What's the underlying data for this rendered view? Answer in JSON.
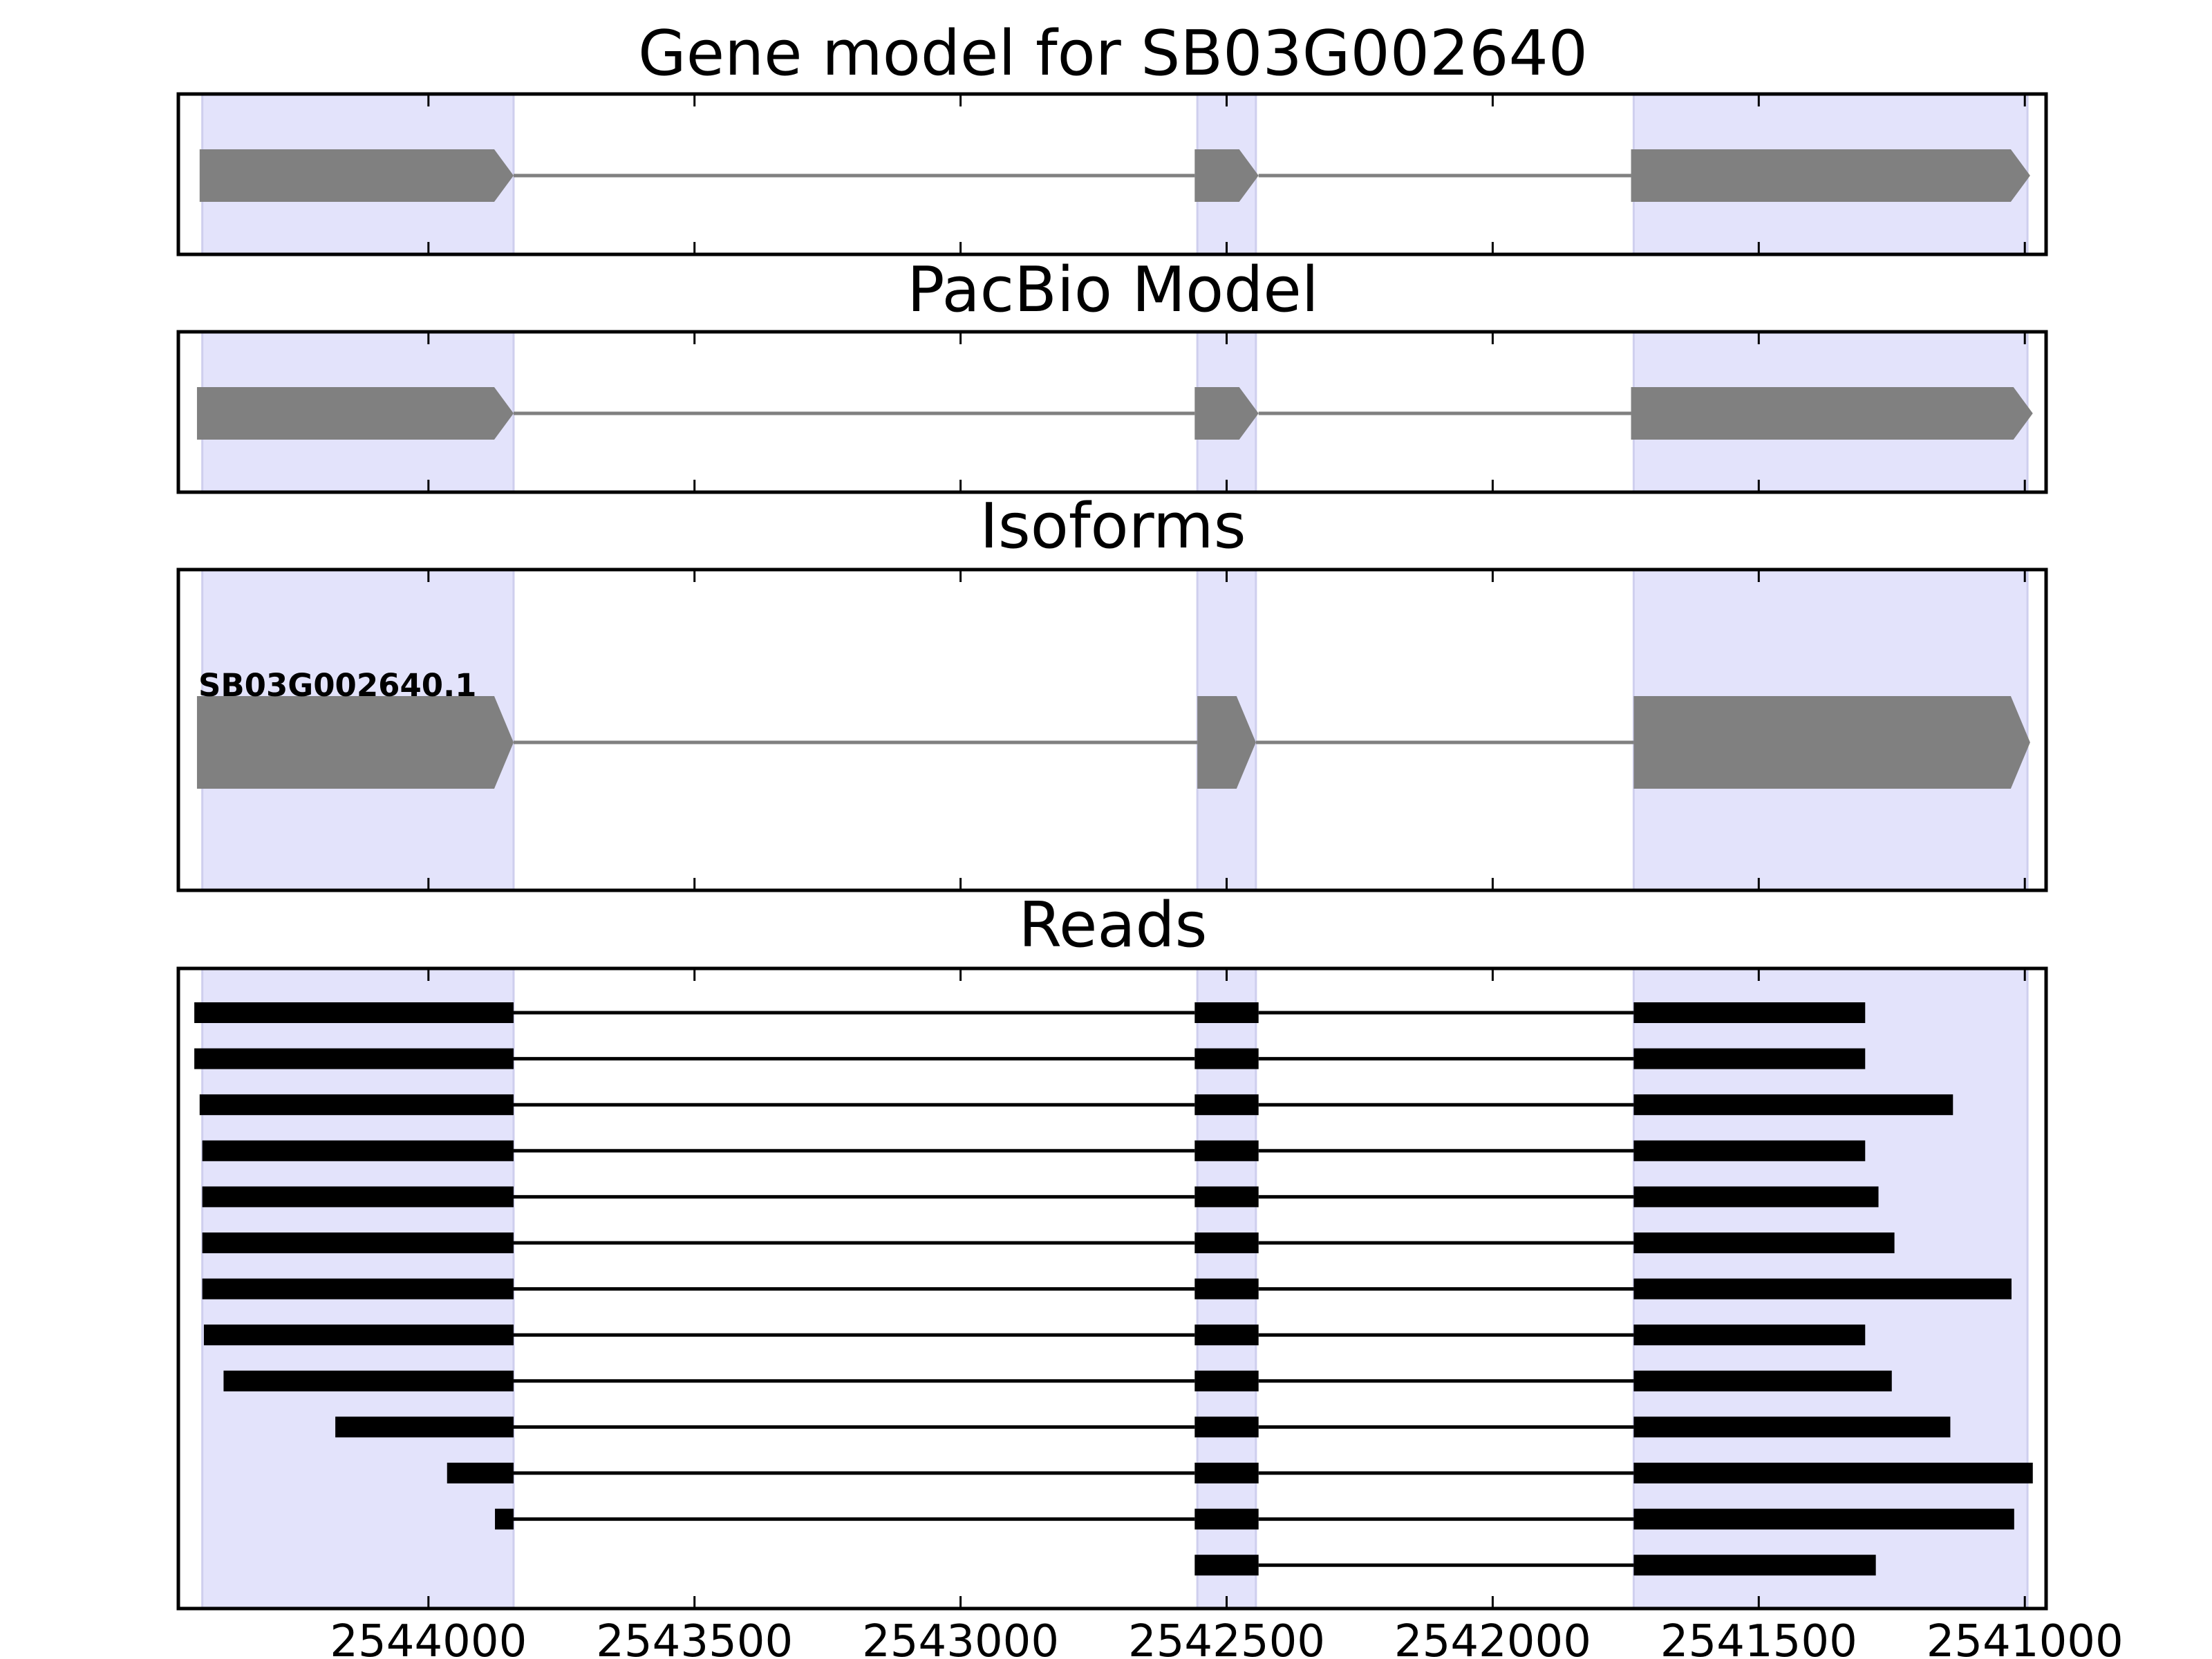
{
  "colors": {
    "exon_band": "#e3e3fb",
    "exon_band_edge": "#cfcfee",
    "gene_feature": "#808080",
    "read": "#000000",
    "frame": "#000000"
  },
  "x_axis": {
    "reversed": true,
    "domain": [
      2544470,
      2540960
    ],
    "ticks": [
      2544000,
      2543500,
      2543000,
      2542500,
      2542000,
      2541500,
      2541000
    ],
    "tick_labels": [
      "2544000",
      "2543500",
      "2543000",
      "2542500",
      "2542000",
      "2541500",
      "2541000"
    ]
  },
  "exon_bands": [
    {
      "start": 2544425,
      "end": 2543840
    },
    {
      "start": 2542555,
      "end": 2542445
    },
    {
      "start": 2541735,
      "end": 2540995
    }
  ],
  "panels": [
    {
      "key": "gene_model",
      "title": "Gene model for SB03G002640",
      "features": [
        {
          "type": "exon",
          "start": 2544430,
          "end": 2543840
        },
        {
          "type": "exon",
          "start": 2542560,
          "end": 2542440
        },
        {
          "type": "exon",
          "start": 2541740,
          "end": 2540990
        }
      ]
    },
    {
      "key": "pacbio_model",
      "title": "PacBio Model",
      "features": [
        {
          "type": "exon",
          "start": 2544435,
          "end": 2543840
        },
        {
          "type": "exon",
          "start": 2542560,
          "end": 2542440
        },
        {
          "type": "exon",
          "start": 2541740,
          "end": 2540985
        }
      ]
    },
    {
      "key": "isoforms",
      "title": "Isoforms",
      "isoforms": [
        {
          "name": "SB03G002640.1",
          "exons": [
            {
              "start": 2544435,
              "end": 2543840
            },
            {
              "start": 2542555,
              "end": 2542445
            },
            {
              "start": 2541735,
              "end": 2540990
            }
          ]
        }
      ]
    },
    {
      "key": "reads",
      "title": "Reads",
      "reads": [
        {
          "exons": [
            [
              2544440,
              2543840
            ],
            [
              2542560,
              2542440
            ],
            [
              2541735,
              2541300
            ]
          ]
        },
        {
          "exons": [
            [
              2544440,
              2543840
            ],
            [
              2542560,
              2542440
            ],
            [
              2541735,
              2541300
            ]
          ]
        },
        {
          "exons": [
            [
              2544430,
              2543840
            ],
            [
              2542560,
              2542440
            ],
            [
              2541735,
              2541135
            ]
          ]
        },
        {
          "exons": [
            [
              2544425,
              2543840
            ],
            [
              2542560,
              2542440
            ],
            [
              2541735,
              2541300
            ]
          ]
        },
        {
          "exons": [
            [
              2544425,
              2543840
            ],
            [
              2542560,
              2542440
            ],
            [
              2541735,
              2541275
            ]
          ]
        },
        {
          "exons": [
            [
              2544425,
              2543840
            ],
            [
              2542560,
              2542440
            ],
            [
              2541735,
              2541245
            ]
          ]
        },
        {
          "exons": [
            [
              2544425,
              2543840
            ],
            [
              2542560,
              2542440
            ],
            [
              2541735,
              2541025
            ]
          ]
        },
        {
          "exons": [
            [
              2544422,
              2543840
            ],
            [
              2542560,
              2542440
            ],
            [
              2541735,
              2541300
            ]
          ]
        },
        {
          "exons": [
            [
              2544385,
              2543840
            ],
            [
              2542560,
              2542440
            ],
            [
              2541735,
              2541250
            ]
          ]
        },
        {
          "exons": [
            [
              2544175,
              2543840
            ],
            [
              2542560,
              2542440
            ],
            [
              2541735,
              2541140
            ]
          ]
        },
        {
          "exons": [
            [
              2543965,
              2543840
            ],
            [
              2542560,
              2542440
            ],
            [
              2541735,
              2540985
            ]
          ]
        },
        {
          "exons": [
            [
              2543875,
              2543840
            ],
            [
              2542560,
              2542440
            ],
            [
              2541735,
              2541020
            ]
          ]
        },
        {
          "exons": [
            [
              2542560,
              2542440
            ],
            [
              2541735,
              2541280
            ]
          ]
        }
      ]
    }
  ]
}
